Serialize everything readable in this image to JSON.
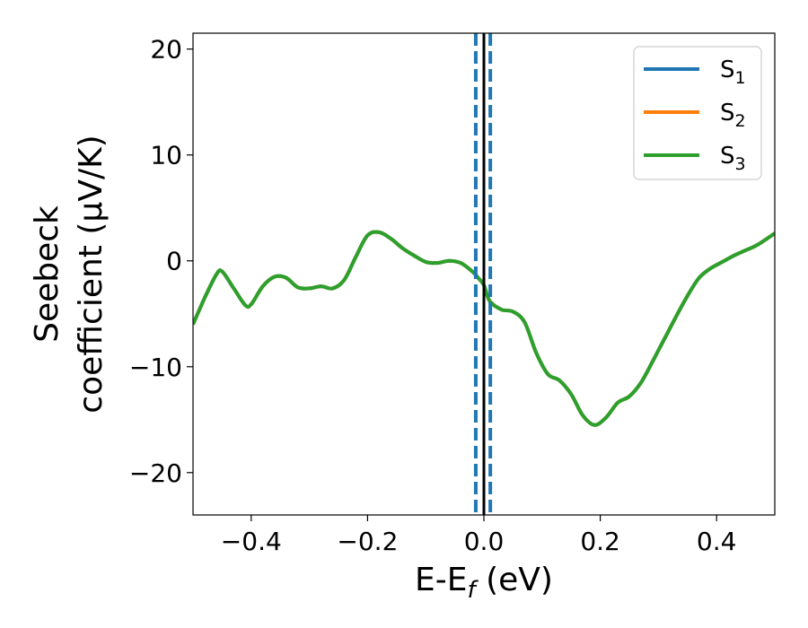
{
  "chart_data": {
    "type": "line",
    "xlabel": "E-E_f (eV)",
    "ylabel_line1": "Seebeck",
    "ylabel_line2": "coefficient  (μV/K)",
    "xlim": [
      -0.5,
      0.5
    ],
    "ylim": [
      -24,
      21.5
    ],
    "xticks": [
      -0.4,
      -0.2,
      0.0,
      0.2,
      0.4
    ],
    "xtick_labels": [
      "−0.4",
      "−0.2",
      "0.0",
      "0.2",
      "0.4"
    ],
    "yticks": [
      -20,
      -10,
      0,
      10,
      20
    ],
    "ytick_labels": [
      "−20",
      "−10",
      "0",
      "10",
      "20"
    ],
    "grid": false,
    "legend_position": "top-right",
    "legend": [
      {
        "label": "S",
        "sub": "1",
        "color": "#1f77b4"
      },
      {
        "label": "S",
        "sub": "2",
        "color": "#ff7f0e"
      },
      {
        "label": "S",
        "sub": "3",
        "color": "#2ca02c"
      }
    ],
    "x": [
      -0.5,
      -0.48,
      -0.46,
      -0.45,
      -0.43,
      -0.41,
      -0.4,
      -0.38,
      -0.36,
      -0.34,
      -0.32,
      -0.3,
      -0.28,
      -0.26,
      -0.24,
      -0.22,
      -0.2,
      -0.18,
      -0.16,
      -0.14,
      -0.12,
      -0.1,
      -0.08,
      -0.06,
      -0.04,
      -0.02,
      -0.01,
      0.0,
      0.01,
      0.03,
      0.05,
      0.07,
      0.09,
      0.11,
      0.13,
      0.15,
      0.17,
      0.19,
      0.21,
      0.23,
      0.25,
      0.27,
      0.29,
      0.31,
      0.33,
      0.35,
      0.37,
      0.39,
      0.41,
      0.43,
      0.45,
      0.47,
      0.5
    ],
    "series": [
      {
        "values": [
          -6.0,
          -3.5,
          -1.3,
          -1.0,
          -2.6,
          -4.2,
          -4.1,
          -2.4,
          -1.5,
          -1.6,
          -2.5,
          -2.6,
          -2.4,
          -2.6,
          -1.8,
          0.4,
          2.4,
          2.7,
          2.1,
          1.2,
          0.5,
          -0.1,
          -0.2,
          0.0,
          -0.2,
          -1.0,
          -1.6,
          -2.3,
          -3.8,
          -4.6,
          -4.8,
          -5.8,
          -8.7,
          -10.7,
          -11.3,
          -12.6,
          -14.6,
          -15.5,
          -14.8,
          -13.4,
          -12.8,
          -11.5,
          -9.5,
          -7.4,
          -5.3,
          -3.3,
          -1.6,
          -0.7,
          -0.1,
          0.5,
          1.0,
          1.5,
          2.6
        ],
        "color": "#1f77b4"
      },
      {
        "values": [
          -6.0,
          -3.5,
          -1.3,
          -1.0,
          -2.6,
          -4.2,
          -4.1,
          -2.4,
          -1.5,
          -1.6,
          -2.5,
          -2.6,
          -2.4,
          -2.6,
          -1.8,
          0.4,
          2.4,
          2.7,
          2.1,
          1.2,
          0.5,
          -0.1,
          -0.2,
          0.0,
          -0.2,
          -1.0,
          -1.6,
          -2.3,
          -3.8,
          -4.6,
          -4.8,
          -5.8,
          -8.7,
          -10.7,
          -11.3,
          -12.6,
          -14.6,
          -15.5,
          -14.8,
          -13.4,
          -12.8,
          -11.5,
          -9.5,
          -7.4,
          -5.3,
          -3.3,
          -1.6,
          -0.7,
          -0.1,
          0.5,
          1.0,
          1.5,
          2.6
        ],
        "color": "#ff7f0e"
      },
      {
        "values": [
          -6.0,
          -3.5,
          -1.3,
          -1.0,
          -2.6,
          -4.2,
          -4.1,
          -2.4,
          -1.5,
          -1.6,
          -2.5,
          -2.6,
          -2.4,
          -2.6,
          -1.8,
          0.4,
          2.4,
          2.7,
          2.1,
          1.2,
          0.5,
          -0.1,
          -0.2,
          0.0,
          -0.2,
          -1.0,
          -1.6,
          -2.3,
          -3.8,
          -4.6,
          -4.8,
          -5.8,
          -8.7,
          -10.7,
          -11.3,
          -12.6,
          -14.6,
          -15.5,
          -14.8,
          -13.4,
          -12.8,
          -11.5,
          -9.5,
          -7.4,
          -5.3,
          -3.3,
          -1.6,
          -0.7,
          -0.1,
          0.5,
          1.0,
          1.5,
          2.6
        ],
        "color": "#2ca02c"
      }
    ],
    "vlines": [
      {
        "x": -0.014,
        "style": "dashed",
        "color": "#1f77b4"
      },
      {
        "x": 0.0,
        "style": "solid",
        "color": "#000000"
      },
      {
        "x": 0.011,
        "style": "dashed",
        "color": "#1f77b4"
      }
    ]
  }
}
